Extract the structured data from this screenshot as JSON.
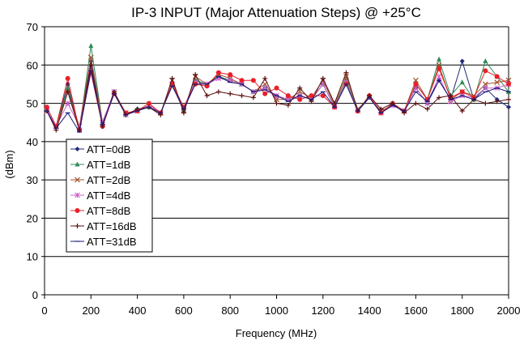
{
  "chart_data": {
    "type": "line",
    "title": "IP-3 INPUT (Major Attenuation Steps) @ +25°C",
    "xlabel": "Frequency (MHz)",
    "ylabel": "(dBm)",
    "xlim": [
      0,
      2000
    ],
    "ylim": [
      0,
      70
    ],
    "xticks": [
      0,
      200,
      400,
      600,
      800,
      1000,
      1200,
      1400,
      1600,
      1800,
      2000
    ],
    "yticks": [
      0,
      10,
      20,
      30,
      40,
      50,
      60,
      70
    ],
    "grid": "horizontal",
    "legend_position": "left-middle",
    "x": [
      10,
      50,
      100,
      150,
      200,
      250,
      300,
      350,
      400,
      450,
      500,
      550,
      600,
      650,
      700,
      750,
      800,
      850,
      900,
      950,
      1000,
      1050,
      1100,
      1150,
      1200,
      1250,
      1300,
      1350,
      1400,
      1450,
      1500,
      1550,
      1600,
      1650,
      1700,
      1750,
      1800,
      1850,
      1900,
      1950,
      2000
    ],
    "series": [
      {
        "name": "ATT=0dB",
        "color": "#1f2a7a",
        "marker": "diamond",
        "values": [
          48,
          44,
          55,
          43,
          61,
          45,
          53,
          47,
          48.5,
          49,
          47.5,
          55,
          48,
          56,
          55,
          57,
          56,
          55,
          53,
          54,
          52,
          51,
          52,
          51,
          55,
          49,
          56,
          48,
          51.5,
          47.5,
          49.5,
          48,
          54,
          50,
          56,
          51,
          61,
          51,
          54,
          51,
          49
        ]
      },
      {
        "name": "ATT=1dB",
        "color": "#2e8b57",
        "marker": "triangle",
        "values": [
          48,
          44,
          54,
          43,
          65,
          45,
          53,
          47,
          48.5,
          49,
          47.5,
          55,
          48,
          56,
          55,
          57,
          56,
          55,
          53,
          54,
          52,
          51,
          52,
          51,
          55,
          49,
          56,
          48,
          51.5,
          47.5,
          49.5,
          48,
          55,
          51,
          61.5,
          52,
          55.5,
          51,
          61,
          57,
          53
        ]
      },
      {
        "name": "ATT=2dB",
        "color": "#a0522d",
        "marker": "x",
        "values": [
          48,
          44,
          53,
          44,
          62,
          45,
          53,
          47.5,
          48,
          49.5,
          47.5,
          56,
          48,
          57,
          55,
          57.5,
          56.5,
          55,
          53,
          55,
          51,
          51,
          53,
          51.5,
          56,
          49.5,
          57,
          48.5,
          51.5,
          48,
          49.5,
          48,
          56,
          51,
          60,
          51,
          53,
          52,
          55,
          55.5,
          56
        ]
      },
      {
        "name": "ATT=4dB",
        "color": "#cc66cc",
        "marker": "asterisk",
        "values": [
          48,
          44,
          50,
          44,
          59,
          45,
          53,
          47,
          48,
          49.5,
          47.5,
          55,
          49,
          55.5,
          55,
          56.5,
          56,
          55,
          53,
          54,
          52,
          51,
          52,
          51,
          55,
          49,
          55.5,
          48,
          51.5,
          47.5,
          49.5,
          48,
          54,
          50,
          57,
          50.5,
          52,
          51.5,
          54,
          54,
          55
        ]
      },
      {
        "name": "ATT=8dB",
        "color": "#e8202a",
        "marker": "circle",
        "values": [
          49,
          44,
          56.5,
          43,
          58,
          44,
          52.5,
          47.5,
          48,
          50,
          47.5,
          55,
          49,
          55,
          54.5,
          58,
          57.5,
          56,
          56,
          52.5,
          54,
          52,
          51,
          52,
          52,
          49,
          55,
          48,
          52,
          47.5,
          50,
          48,
          55,
          51,
          59,
          51.5,
          53,
          51.5,
          58.5,
          57,
          55
        ]
      },
      {
        "name": "ATT=16dB",
        "color": "#5c1010",
        "marker": "plus",
        "values": [
          48,
          43,
          53,
          43,
          60,
          44,
          53,
          47,
          48.5,
          49,
          47,
          56.5,
          47.5,
          57.5,
          52,
          53,
          52.5,
          52,
          51.5,
          56.5,
          50,
          49.5,
          54,
          50.5,
          56.5,
          50,
          58,
          48,
          52,
          48.5,
          50,
          47.5,
          50,
          48.5,
          51.5,
          52,
          48,
          51,
          50,
          50.5,
          51
        ]
      },
      {
        "name": "ATT=31dB",
        "color": "#1a1a7a",
        "marker": "dash",
        "values": [
          48,
          43.5,
          47.5,
          42.5,
          58.5,
          44.5,
          52.5,
          47,
          48,
          49,
          47.5,
          54.5,
          48.5,
          55,
          55,
          57,
          55.5,
          55,
          53,
          53.5,
          52,
          50.5,
          52,
          51,
          53,
          49,
          55,
          48,
          51.5,
          47.5,
          49.5,
          48,
          53,
          50.5,
          56,
          51,
          52,
          51,
          53,
          54,
          53
        ]
      }
    ]
  }
}
